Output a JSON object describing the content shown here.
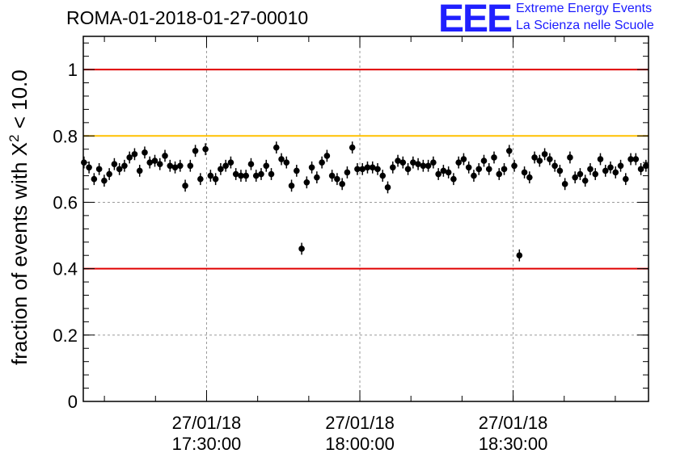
{
  "header": {
    "title": "ROMA-01-2018-01-27-00010",
    "logo_text": "EEE",
    "logo_line1": "Extreme Energy Events",
    "logo_line2": "La Scienza nelle Scuole"
  },
  "colors": {
    "red_line": "#e00000",
    "yellow_line": "#ffc000",
    "logo_blue": "#2020ff",
    "grid": "#9a9a9a",
    "points": "#000000"
  },
  "chart_data": {
    "type": "scatter",
    "ylabel_main": "fraction of events with X",
    "ylabel_sup": "2",
    "ylabel_tail": " < 10.0",
    "ylim": [
      0,
      1.1
    ],
    "yticks": [
      0,
      0.2,
      0.4,
      0.6,
      0.8,
      1
    ],
    "ytick_labels": [
      "0",
      "0.2",
      "0.4",
      "0.6",
      "0.8",
      "1"
    ],
    "xlim": [
      "2018-01-27 17:05:52",
      "2018-01-27 18:56:30"
    ],
    "xticks": [
      {
        "date": "27/01/18",
        "time": "17:30:00"
      },
      {
        "date": "27/01/18",
        "time": "18:00:00"
      },
      {
        "date": "27/01/18",
        "time": "18:30:00"
      }
    ],
    "reference_lines": [
      {
        "y": 1.0,
        "color": "red"
      },
      {
        "y": 0.8,
        "color": "yellow"
      },
      {
        "y": 0.4,
        "color": "red"
      }
    ],
    "grid": true,
    "legend": "none",
    "error_bar": 0.018,
    "x_start": "2018-01-27 17:06:00",
    "x_end": "2018-01-27 18:56:00",
    "y": [
      0.72,
      0.705,
      0.67,
      0.7,
      0.665,
      0.685,
      0.715,
      0.7,
      0.71,
      0.735,
      0.745,
      0.695,
      0.75,
      0.72,
      0.725,
      0.715,
      0.74,
      0.71,
      0.705,
      0.71,
      0.65,
      0.71,
      0.755,
      0.67,
      0.76,
      0.68,
      0.67,
      0.7,
      0.71,
      0.72,
      0.685,
      0.68,
      0.68,
      0.715,
      0.68,
      0.685,
      0.71,
      0.685,
      0.765,
      0.73,
      0.72,
      0.65,
      0.695,
      0.46,
      0.66,
      0.705,
      0.675,
      0.72,
      0.74,
      0.68,
      0.67,
      0.655,
      0.69,
      0.765,
      0.7,
      0.7,
      0.705,
      0.705,
      0.7,
      0.68,
      0.645,
      0.705,
      0.725,
      0.72,
      0.7,
      0.72,
      0.715,
      0.71,
      0.71,
      0.72,
      0.685,
      0.695,
      0.69,
      0.67,
      0.72,
      0.73,
      0.705,
      0.68,
      0.7,
      0.725,
      0.7,
      0.735,
      0.685,
      0.7,
      0.755,
      0.71,
      0.44,
      0.69,
      0.675,
      0.735,
      0.725,
      0.745,
      0.73,
      0.71,
      0.695,
      0.655,
      0.735,
      0.675,
      0.685,
      0.665,
      0.7,
      0.685,
      0.73,
      0.695,
      0.705,
      0.69,
      0.71,
      0.67,
      0.73,
      0.73,
      0.7,
      0.71
    ]
  }
}
